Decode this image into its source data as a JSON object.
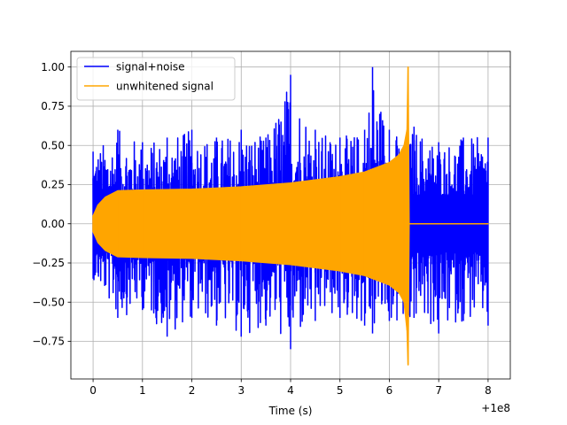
{
  "chart_data": {
    "type": "line",
    "title": "",
    "xlabel": "Time (s)",
    "ylabel": "",
    "x_offset_label": "+1e8",
    "xlim": [
      -0.45,
      8.45
    ],
    "ylim": [
      -0.99,
      1.1
    ],
    "xticks": [
      0,
      1,
      2,
      3,
      4,
      5,
      6,
      7,
      8
    ],
    "xtick_labels": [
      "0",
      "1",
      "2",
      "3",
      "4",
      "5",
      "6",
      "7",
      "8"
    ],
    "yticks": [
      -0.75,
      -0.5,
      -0.25,
      0.0,
      0.25,
      0.5,
      0.75,
      1.0
    ],
    "ytick_labels": [
      "−0.75",
      "−0.50",
      "−0.25",
      "0.00",
      "0.25",
      "0.50",
      "0.75",
      "1.00"
    ],
    "grid": true,
    "legend_position": "top-left",
    "colors": {
      "noise": "#0000ff",
      "signal": "#ffa500"
    },
    "series": [
      {
        "name": "signal+noise",
        "color": "#0000ff",
        "x": [
          0,
          0.5,
          1,
          1.5,
          2,
          2.5,
          3,
          3.5,
          4,
          4.5,
          5,
          5.5,
          5.66,
          6,
          6.38,
          6.5,
          7,
          7.5,
          8
        ],
        "upper": [
          0.46,
          0.6,
          0.52,
          0.55,
          0.6,
          0.55,
          0.6,
          0.55,
          0.95,
          0.6,
          0.55,
          0.6,
          1.0,
          0.6,
          0.55,
          0.62,
          0.52,
          0.55,
          0.55
        ],
        "lower": [
          -0.35,
          -0.6,
          -0.55,
          -0.72,
          -0.6,
          -0.65,
          -0.72,
          -0.65,
          -0.8,
          -0.62,
          -0.6,
          -0.65,
          -0.7,
          -0.62,
          -0.75,
          -0.6,
          -0.7,
          -0.62,
          -0.65
        ]
      },
      {
        "name": "unwhitened signal",
        "color": "#ffa500",
        "x": [
          0,
          0.1,
          0.25,
          0.5,
          1,
          2,
          3,
          4,
          5,
          5.5,
          6,
          6.2,
          6.3,
          6.36,
          6.38,
          6.4,
          6.45,
          8
        ],
        "upper": [
          0.05,
          0.12,
          0.17,
          0.21,
          0.215,
          0.22,
          0.235,
          0.26,
          0.3,
          0.33,
          0.39,
          0.44,
          0.5,
          0.6,
          1.0,
          0.0,
          0.0,
          0.0
        ],
        "lower": [
          -0.05,
          -0.12,
          -0.17,
          -0.21,
          -0.215,
          -0.22,
          -0.235,
          -0.26,
          -0.3,
          -0.33,
          -0.39,
          -0.44,
          -0.5,
          -0.68,
          -0.9,
          0.0,
          0.0,
          0.0
        ]
      }
    ]
  }
}
